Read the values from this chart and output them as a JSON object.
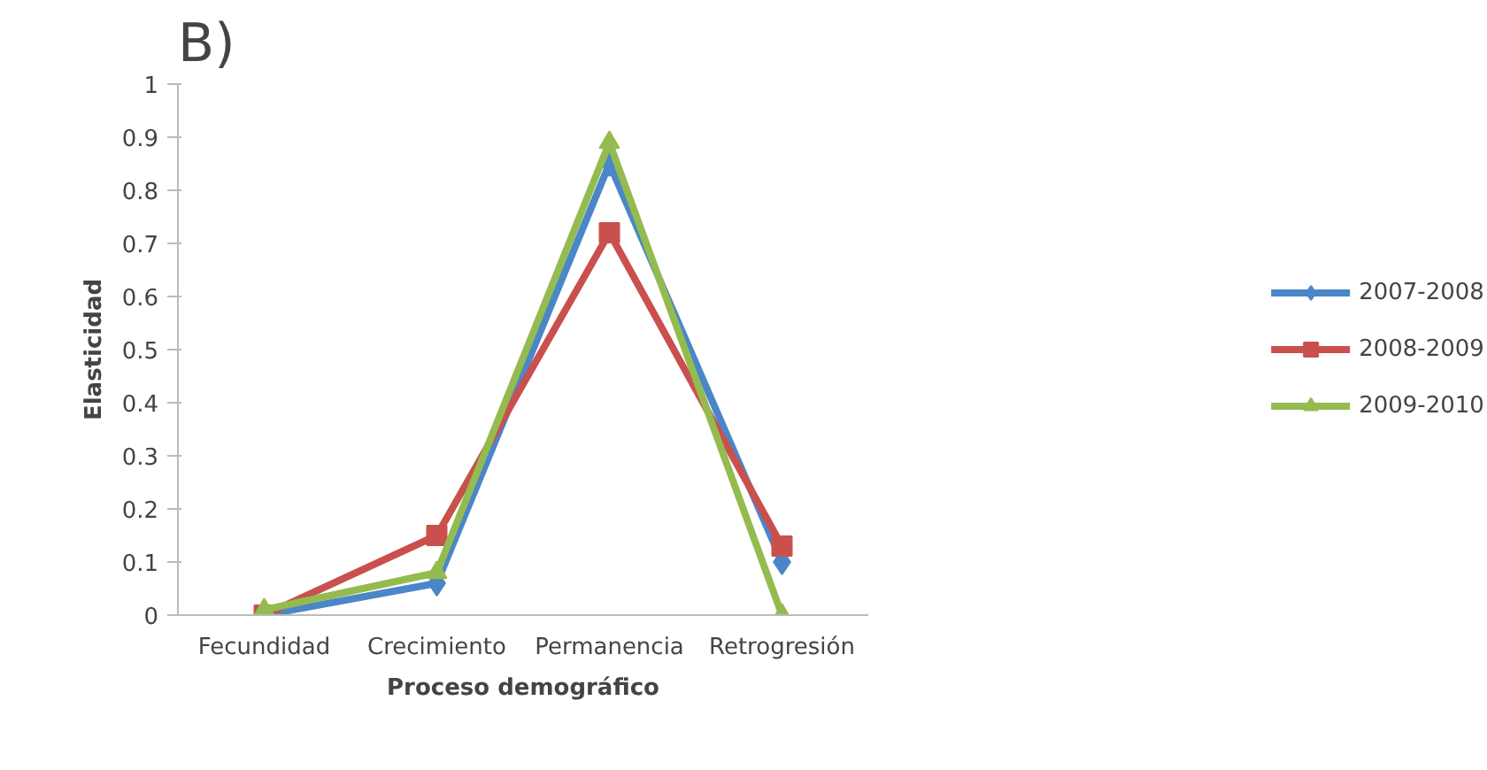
{
  "chart_data": {
    "type": "line",
    "title": "B)",
    "xlabel": "Proceso demográfico",
    "ylabel": "Elasticidad",
    "categories": [
      "Fecundidad",
      "Crecimiento",
      "Permanencia",
      "Retrogresión"
    ],
    "series": [
      {
        "name": "2007-2008",
        "color": "#4a86c8",
        "marker": "diamond",
        "values": [
          0,
          0.06,
          0.85,
          0.1
        ]
      },
      {
        "name": "2008-2009",
        "color": "#c9504d",
        "marker": "square",
        "values": [
          0,
          0.15,
          0.72,
          0.13
        ]
      },
      {
        "name": "2009-2010",
        "color": "#94bb4f",
        "marker": "triangle",
        "values": [
          0.01,
          0.08,
          0.89,
          0
        ]
      }
    ],
    "ylim": [
      0,
      1
    ],
    "yticks": [
      0,
      0.1,
      0.2,
      0.3,
      0.4,
      0.5,
      0.6,
      0.7,
      0.8,
      0.9,
      1
    ],
    "grid": false,
    "legend": "right"
  }
}
